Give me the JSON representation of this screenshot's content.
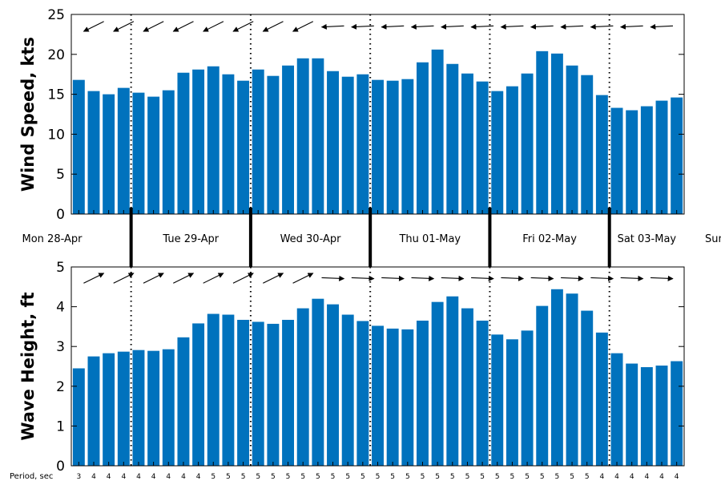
{
  "chart_data": [
    {
      "type": "bar",
      "ylabel": "Wind Speed, kts",
      "ylim": [
        0,
        25
      ],
      "yticks": [
        "0",
        "5",
        "10",
        "15",
        "20",
        "25"
      ],
      "values": [
        16.8,
        15.4,
        15.0,
        15.8,
        15.2,
        14.7,
        15.5,
        17.7,
        18.1,
        18.5,
        17.5,
        16.7,
        18.1,
        17.3,
        18.6,
        19.5,
        19.5,
        17.9,
        17.2,
        17.5,
        16.8,
        16.7,
        16.9,
        19.0,
        20.6,
        18.8,
        17.6,
        16.6,
        15.4,
        16.0,
        17.6,
        20.4,
        20.1,
        18.6,
        17.4,
        14.9,
        13.3,
        13.0,
        13.5,
        14.2,
        14.6
      ],
      "direction_arrows": "wind direction arrows shown every other period, pointing down-left on 28-30 Apr, then nearly due west (left) on 01-03 May",
      "color": "#0072BD"
    },
    {
      "type": "bar",
      "ylabel": "Wave Height, ft",
      "ylim": [
        0,
        5
      ],
      "yticks": [
        "0",
        "1",
        "2",
        "3",
        "4",
        "5"
      ],
      "values": [
        2.45,
        2.75,
        2.83,
        2.87,
        2.91,
        2.89,
        2.93,
        3.23,
        3.58,
        3.82,
        3.8,
        3.67,
        3.62,
        3.57,
        3.67,
        3.96,
        4.2,
        4.06,
        3.8,
        3.64,
        3.52,
        3.45,
        3.43,
        3.65,
        4.12,
        4.26,
        3.96,
        3.65,
        3.3,
        3.18,
        3.4,
        4.02,
        4.44,
        4.33,
        3.9,
        3.35,
        2.83,
        2.57,
        2.48,
        2.52,
        2.63
      ],
      "direction_arrows": "wave direction arrows shown every other period, pointing up-right on 28-30 Apr, then nearly due east (right) on 01-03 May",
      "color": "#0072BD"
    }
  ],
  "days": [
    "Mon 28-Apr",
    "Tue 29-Apr",
    "Wed 30-Apr",
    "Thu 01-May",
    "Fri 02-May",
    "Sat 03-May",
    "Sun"
  ],
  "period_label": "Period, sec",
  "periods": [
    "3",
    "4",
    "4",
    "4",
    "4",
    "4",
    "4",
    "4",
    "4",
    "5",
    "5",
    "5",
    "5",
    "5",
    "5",
    "5",
    "5",
    "5",
    "5",
    "5",
    "5",
    "5",
    "5",
    "5",
    "5",
    "5",
    "5",
    "5",
    "5",
    "5",
    "5",
    "5",
    "5",
    "5",
    "5",
    "4",
    "4",
    "4",
    "4",
    "4",
    "4"
  ]
}
